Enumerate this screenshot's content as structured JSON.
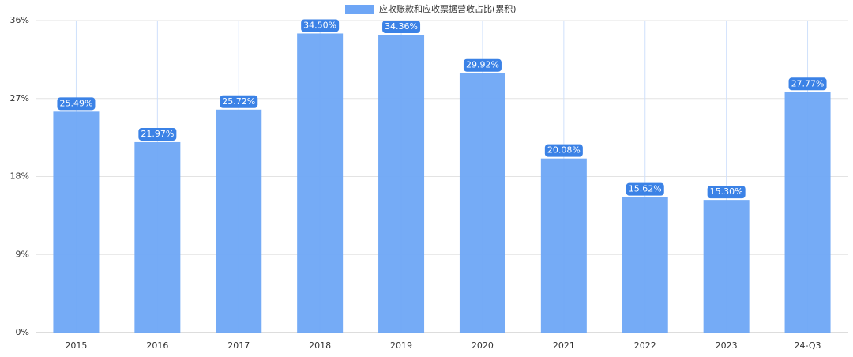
{
  "chart_data": {
    "type": "bar",
    "legend": "应收账款和应收票据营收占比(累积)",
    "categories": [
      "2015",
      "2016",
      "2017",
      "2018",
      "2019",
      "2020",
      "2021",
      "2022",
      "2023",
      "24-Q3"
    ],
    "values": [
      25.49,
      21.97,
      25.72,
      34.5,
      34.36,
      29.92,
      20.08,
      15.62,
      15.3,
      27.77
    ],
    "value_labels": [
      "25.49%",
      "21.97%",
      "25.72%",
      "34.50%",
      "34.36%",
      "29.92%",
      "20.08%",
      "15.62%",
      "15.30%",
      "27.77%"
    ],
    "color": "#6ea6f6",
    "ylim": [
      0,
      36
    ],
    "yticks": [
      {
        "value": 0,
        "label": "0%"
      },
      {
        "value": 9,
        "label": "9%"
      },
      {
        "value": 18,
        "label": "18%"
      },
      {
        "value": 27,
        "label": "27%"
      },
      {
        "value": 36,
        "label": "36%"
      }
    ],
    "grid": true
  }
}
